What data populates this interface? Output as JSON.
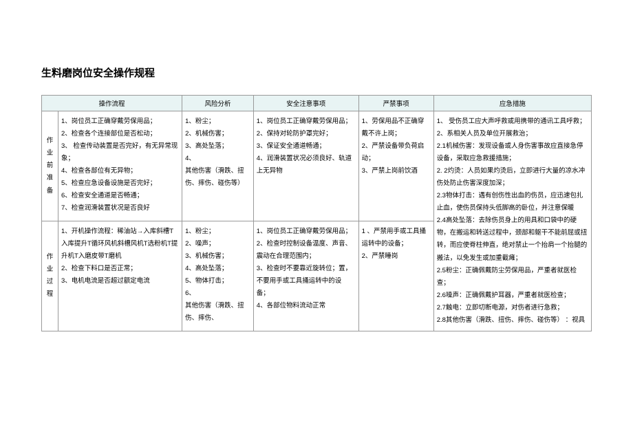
{
  "title": "生料磨岗位安全操作规程",
  "headers": {
    "c1": "操作流程",
    "c2": "风险分析",
    "c3": "安全注意事项",
    "c4": "严禁事项",
    "c5": "应急措施"
  },
  "row1": {
    "stage": "作业前准备",
    "proc": "1、岗位员工正确穿戴劳保用品；\n2、检查各个连接部位是否松动；\n3、 检查传动装置是否完好，有无异常现象；\n4、检查各部位有无异物；\n5、检查应急设备设施是否完好；\n6、检查安全通道是否畅通；\n7、检查润滑装置状况是否良好",
    "risk": "1、粉尘；\n2、机械伤害；\n3、高处坠落；\n4、\n    其他伤害（滑跌、扭伤、摔伤、碰伤等）",
    "note": "1、岗位员工正确穿戴劳保用品；\n2、保持对轮防护罩完好；\n3、保证安全通道畅通；\n4、润滑装置状况必须良好、轨道上无异物",
    "forbid": "1、劳保用品不正确穿戴不许上岗；\n2、严禁设备带负荷启动；\n3、严禁上岗前饮酒"
  },
  "row2": {
    "stage": "作业过程",
    "proc": "1、开机操作流程：稀油站→入库斜槽T入库提升T循环风机斜槽风机T选粉机T提升机T入磨皮带T磨机\n2、检查下料口是否正常；\n3、电机电流是否超过额定电流",
    "risk": "1、粉尘；\n2、噪声；\n3、机械伤害；\n4、高处坠落；\n5、物体打击；\n6、\n    其他伤害（滑跌、扭伤、摔伤、",
    "note": "1、岗位员工正确穿戴劳保用品；\n2、检查时控制设备温度、声音、震动在合理范围内；\n3、检查时不要靠近旋转位；置，不要用手或工具捅运转中的设 备；\n4、各部位物料流动正常",
    "forbid": "1 、严禁用手或工具捅运转中的设备；\n2、严禁睡岗"
  },
  "emergency": "1、 受伤员工应大声呼救或用携带的通讯工具呼救；\n2、系相关人员及单位开展救治；\n2.1机械伤害：发现设备或人身伤害事故应直接急停设备，采取应急救援措施；\n2. 2灼烫：人员如果灼烫后，立即进行大量的凉水冲伤处防止伤害深度加深；\n2.3物体打击：遇有创伤性出血的伤员，应迅速包扎止血，使伤员保持头低脚高的卧位，并注意保暖\n2.4高处坠落：去除伤员身上的用具和口袋中的硬物，在搬运和转送过程中，颈部和躯干不能前屈或扭转，而应使脊柱伸直，绝对禁止一个抬肩一个抬腿的搬法，以免发生或加重截瘫；\n2.5粉尘：正确佩戴防尘劳保用品，严重者就医检查；\n2.6噪声：正确佩戴护耳器，严重者就医检查；\n2.7触电：立即切断电源，对伤者进行急救；\n2.8其他伤害（滑跌、扭伤、摔伤、碰伤等）  ：视具",
  "colors": {
    "header_bg": "#e8f4f4",
    "border": "#999999",
    "text": "#000000",
    "background": "#ffffff"
  },
  "fonts": {
    "title_size": 15,
    "body_size": 9.5,
    "line_height": 1.9
  }
}
